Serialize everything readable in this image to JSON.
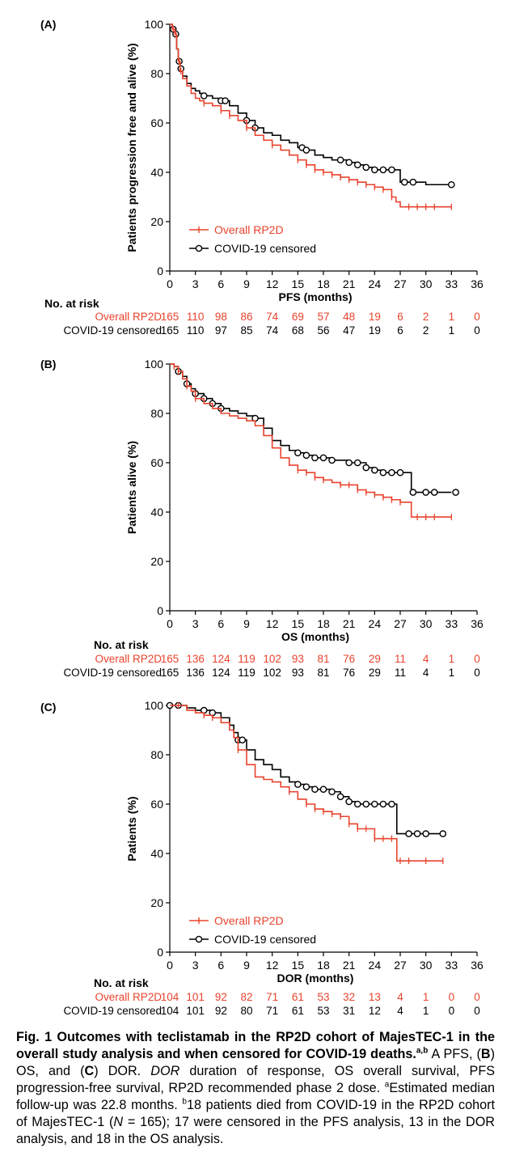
{
  "colors": {
    "overall": "#e8432d",
    "covid": "#000000"
  },
  "chart_data": [
    {
      "type": "line",
      "panel_label": "(A)",
      "xlabel": "PFS (months)",
      "ylabel": "Patients progression free and alive (%)",
      "xticks": [
        0,
        3,
        6,
        9,
        12,
        15,
        18,
        21,
        24,
        27,
        30,
        33,
        36
      ],
      "yticks": [
        0,
        20,
        40,
        60,
        80,
        100
      ],
      "xlim": [
        0,
        36
      ],
      "ylim": [
        0,
        100
      ],
      "legend": [
        "Overall RP2D",
        "COVID-19 censored"
      ],
      "series": [
        {
          "name": "Overall RP2D",
          "x": [
            0,
            0.3,
            0.6,
            0.8,
            1.0,
            1.2,
            1.5,
            2,
            2.5,
            3,
            3.5,
            4,
            5,
            6,
            7,
            8,
            9,
            10,
            11,
            12,
            13,
            14,
            15,
            16,
            17,
            18,
            19,
            20,
            21,
            22,
            23,
            24,
            25,
            26,
            26.5,
            27,
            28,
            29,
            30,
            31,
            32,
            33
          ],
          "y": [
            100,
            98,
            96,
            90,
            85,
            81,
            78,
            75,
            72,
            70,
            69,
            68,
            67,
            65,
            63,
            61,
            58,
            55,
            53,
            51,
            49,
            47,
            45,
            43,
            41,
            40,
            39,
            38,
            37,
            36,
            35,
            34,
            33,
            30,
            28,
            26,
            26,
            26,
            26,
            26,
            26,
            26
          ],
          "censor_x": [
            0.4,
            0.7,
            1.1,
            1.3,
            4,
            6,
            7,
            9,
            12,
            15,
            16,
            17,
            18,
            19,
            20,
            21,
            22,
            23,
            24,
            25,
            26,
            28,
            29,
            30,
            31,
            33
          ]
        },
        {
          "name": "COVID-19 censored",
          "x": [
            0,
            0.3,
            0.6,
            0.8,
            1.0,
            1.2,
            1.5,
            2,
            2.5,
            3,
            3.5,
            4,
            5,
            6,
            7,
            8,
            9,
            10,
            11,
            12,
            13,
            14,
            15,
            16,
            17,
            18,
            19,
            20,
            21,
            22,
            23,
            24,
            25,
            26,
            27,
            28,
            29,
            30,
            31,
            32,
            33
          ],
          "y": [
            100,
            98,
            96,
            90,
            85,
            82,
            79,
            76,
            74,
            73,
            72,
            71,
            70,
            69,
            67,
            64,
            61,
            58,
            56,
            55,
            53,
            52,
            50,
            49,
            47,
            46,
            45,
            45,
            44,
            43,
            42,
            41,
            41,
            41,
            36,
            36,
            36,
            35,
            35,
            35,
            35
          ],
          "censor_x": [
            0.4,
            0.7,
            1.1,
            1.3,
            4,
            6,
            6.5,
            9,
            10,
            15.5,
            16,
            20,
            21,
            22,
            23,
            24,
            25,
            26,
            27.5,
            28.5,
            33
          ]
        }
      ],
      "risk_table": {
        "title": "No. at risk",
        "rows": [
          {
            "name": "Overall RP2D",
            "values": [
              "165",
              "110",
              "98",
              "86",
              "74",
              "69",
              "57",
              "48",
              "19",
              "6",
              "2",
              "1",
              "0"
            ]
          },
          {
            "name": "COVID-19 censored",
            "values": [
              "165",
              "110",
              "97",
              "85",
              "74",
              "68",
              "56",
              "47",
              "19",
              "6",
              "2",
              "1",
              "0"
            ]
          }
        ]
      }
    },
    {
      "type": "line",
      "panel_label": "(B)",
      "xlabel": "OS (months)",
      "ylabel": "Patients alive (%)",
      "xticks": [
        0,
        3,
        6,
        9,
        12,
        15,
        18,
        21,
        24,
        27,
        30,
        33,
        36
      ],
      "yticks": [
        0,
        20,
        40,
        60,
        80,
        100
      ],
      "xlim": [
        0,
        36
      ],
      "ylim": [
        0,
        100
      ],
      "legend": [
        "Overall RP2D",
        "COVID-19 censored"
      ],
      "series": [
        {
          "name": "Overall RP2D",
          "x": [
            0,
            0.5,
            1,
            1.5,
            2,
            2.5,
            3,
            4,
            5,
            6,
            7,
            8,
            9,
            10,
            11,
            12,
            13,
            14,
            15,
            16,
            17,
            18,
            19,
            20,
            21,
            22,
            23,
            24,
            25,
            26,
            27,
            28,
            28.3,
            29,
            30,
            31,
            32,
            33
          ],
          "y": [
            100,
            99,
            97,
            94,
            91,
            89,
            86,
            84,
            82,
            80,
            79,
            78,
            77,
            75,
            71,
            66,
            62,
            59,
            57,
            56,
            54,
            53,
            52,
            51,
            51,
            49,
            48,
            47,
            46,
            45,
            44,
            44,
            38,
            38,
            38,
            38,
            38,
            38
          ],
          "censor_x": [
            0.5,
            1,
            2,
            3,
            15,
            16,
            17,
            18,
            20,
            21,
            22,
            23,
            24,
            25,
            26,
            27,
            29,
            30,
            31,
            33
          ]
        },
        {
          "name": "COVID-19 censored",
          "x": [
            0,
            0.5,
            1,
            1.5,
            2,
            2.5,
            3,
            4,
            5,
            6,
            7,
            8,
            9,
            10,
            11,
            12,
            13,
            14,
            15,
            16,
            17,
            18,
            19,
            20,
            21,
            22,
            23,
            24,
            25,
            26,
            27,
            28,
            28.3,
            29,
            30,
            31,
            32,
            33
          ],
          "y": [
            100,
            99,
            97,
            95,
            92,
            90,
            88,
            86,
            84,
            82,
            81,
            80,
            79,
            78,
            74,
            69,
            67,
            65,
            64,
            63,
            62,
            62,
            61,
            61,
            60,
            60,
            58,
            57,
            56,
            56,
            56,
            56,
            48,
            48,
            48,
            48,
            48,
            48
          ],
          "censor_x": [
            1,
            2,
            3,
            4,
            5,
            6,
            10,
            15,
            16,
            17,
            18,
            19,
            21,
            22,
            23,
            24,
            25,
            26,
            27,
            28.5,
            30,
            31,
            33.5
          ]
        }
      ],
      "risk_table": {
        "title": "No. at risk",
        "rows": [
          {
            "name": "Overall RP2D",
            "values": [
              "165",
              "136",
              "124",
              "119",
              "102",
              "93",
              "81",
              "76",
              "29",
              "11",
              "4",
              "1",
              "0"
            ]
          },
          {
            "name": "COVID-19 censored",
            "values": [
              "165",
              "136",
              "124",
              "119",
              "102",
              "93",
              "81",
              "76",
              "29",
              "11",
              "4",
              "1",
              "0"
            ]
          }
        ]
      }
    },
    {
      "type": "line",
      "panel_label": "(C)",
      "xlabel": "DOR (months)",
      "ylabel": "Patients (%)",
      "xticks": [
        0,
        3,
        6,
        9,
        12,
        15,
        18,
        21,
        24,
        27,
        30,
        33,
        36
      ],
      "yticks": [
        0,
        20,
        40,
        60,
        80,
        100
      ],
      "xlim": [
        0,
        36
      ],
      "ylim": [
        0,
        100
      ],
      "legend": [
        "Overall RP2D",
        "COVID-19 censored"
      ],
      "series": [
        {
          "name": "Overall RP2D",
          "x": [
            0,
            1,
            2,
            3,
            4,
            5,
            6,
            7,
            7.5,
            8,
            9,
            10,
            11,
            12,
            13,
            14,
            15,
            16,
            17,
            18,
            19,
            20,
            21,
            22,
            23,
            24,
            25,
            26,
            26.6,
            27,
            28,
            29,
            30,
            31,
            32
          ],
          "y": [
            100,
            100,
            98,
            97,
            96,
            95,
            93,
            90,
            87,
            82,
            76,
            71,
            70,
            69,
            67,
            65,
            62,
            60,
            58,
            57,
            56,
            55,
            52,
            50,
            50,
            46,
            46,
            46,
            37,
            37,
            37,
            37,
            37,
            37,
            37
          ],
          "censor_x": [
            1,
            4,
            5,
            8,
            14,
            16,
            17,
            18,
            19,
            20,
            21,
            22,
            23,
            24,
            25,
            26,
            27,
            28,
            30,
            32
          ]
        },
        {
          "name": "COVID-19 censored",
          "x": [
            0,
            1,
            2,
            3,
            4,
            5,
            6,
            7,
            7.5,
            8,
            9,
            10,
            11,
            12,
            13,
            14,
            15,
            16,
            17,
            18,
            19,
            20,
            21,
            22,
            23,
            24,
            25,
            26,
            26.6,
            27,
            28,
            29,
            30,
            31,
            32
          ],
          "y": [
            100,
            100,
            99,
            98,
            98,
            97,
            95,
            92,
            89,
            86,
            82,
            78,
            76,
            74,
            71,
            69,
            68,
            67,
            66,
            66,
            65,
            63,
            61,
            60,
            60,
            60,
            60,
            60,
            48,
            48,
            48,
            48,
            48,
            48,
            48
          ],
          "censor_x": [
            0,
            1,
            4,
            5,
            8,
            8.5,
            15,
            16,
            17,
            18,
            19,
            20,
            21,
            22,
            23,
            24,
            25,
            26,
            28,
            29,
            30,
            32
          ]
        }
      ],
      "risk_table": {
        "title": "No. at risk",
        "rows": [
          {
            "name": "Overall RP2D",
            "values": [
              "104",
              "101",
              "92",
              "82",
              "71",
              "61",
              "53",
              "32",
              "13",
              "4",
              "1",
              "0",
              "0"
            ]
          },
          {
            "name": "COVID-19 censored",
            "values": [
              "104",
              "101",
              "92",
              "80",
              "71",
              "61",
              "53",
              "31",
              "12",
              "4",
              "1",
              "0",
              "0"
            ]
          }
        ]
      }
    }
  ],
  "caption": {
    "lead": "Fig. 1 Outcomes with teclistamab in the RP2D cohort of MajesTEC-1 in the overall study analysis and when censored for COVID-19 deaths.",
    "lead_sup": "a,b",
    "part1": " A PFS, (",
    "b": "B",
    "part2": ") OS, and (",
    "c": "C",
    "part3": ") DOR. ",
    "dor_abbr": "DOR",
    "part4": " duration of response, OS overall survival, PFS progression-free survival, RP2D recommended phase 2 dose. ",
    "sup_a": "a",
    "part5": "Estimated median follow-up was 22.8 months. ",
    "sup_b": "b",
    "part6": "18 patients died from COVID-19 in the RP2D cohort of MajesTEC-1 (",
    "n_italic": "N",
    "part7": " = 165); 17 were censored in the PFS analysis, 13 in the DOR analysis, and 18 in the OS analysis."
  }
}
